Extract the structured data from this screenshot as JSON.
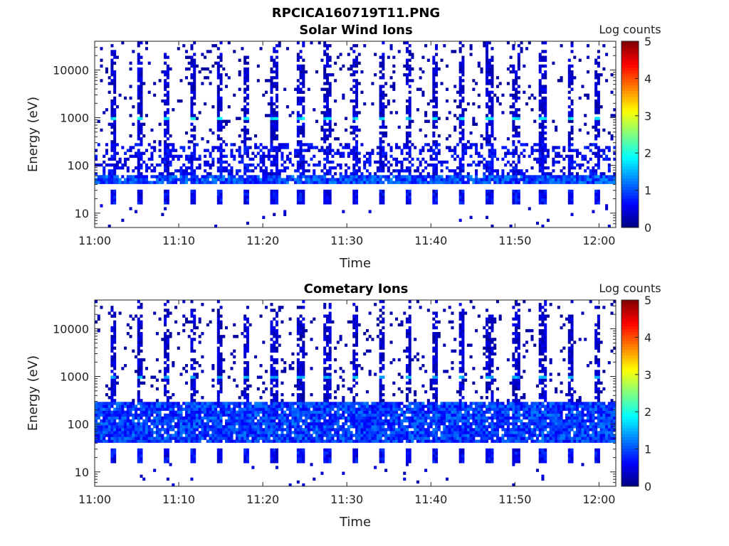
{
  "figure": {
    "title": "RPCICA160719T11.PNG"
  },
  "colors": {
    "background": "#ffffff",
    "empty_cell": "#ffffff",
    "axis": "#222222",
    "colormap": "jet"
  },
  "chart_data": [
    {
      "type": "heatmap",
      "title": "Solar Wind Ions",
      "xlabel": "Time",
      "ylabel": "Energy (eV)",
      "x_ticks": [
        "11:00",
        "11:10",
        "11:20",
        "11:30",
        "11:40",
        "11:50",
        "12:00"
      ],
      "x_range": [
        "11:00",
        "12:02"
      ],
      "y_scale": "log",
      "y_ticks": [
        "10",
        "100",
        "1000",
        "10000"
      ],
      "y_range_eV": [
        5,
        40000
      ],
      "colorbar": {
        "label": "Log counts",
        "range": [
          0,
          5
        ],
        "ticks": [
          "0",
          "1",
          "2",
          "3",
          "4",
          "5"
        ]
      },
      "features": {
        "sweep_period_min": 3.2,
        "dense_band_eV": [
          40,
          60
        ],
        "dense_band_log_counts": 1.3,
        "peak_line_eV": 1000,
        "peak_line_log_counts": 1.8,
        "low_blocks_eV": [
          15,
          30
        ],
        "low_blocks_log_counts": 0.6
      }
    },
    {
      "type": "heatmap",
      "title": "Cometary Ions",
      "xlabel": "Time",
      "ylabel": "Energy (eV)",
      "x_ticks": [
        "11:00",
        "11:10",
        "11:20",
        "11:30",
        "11:40",
        "11:50",
        "12:00"
      ],
      "x_range": [
        "11:00",
        "12:02"
      ],
      "y_scale": "log",
      "y_ticks": [
        "10",
        "100",
        "1000",
        "10000"
      ],
      "y_range_eV": [
        5,
        40000
      ],
      "colorbar": {
        "label": "Log counts",
        "range": [
          0,
          5
        ],
        "ticks": [
          "0",
          "1",
          "2",
          "3",
          "4",
          "5"
        ]
      },
      "features": {
        "sweep_period_min": 3.2,
        "dense_band_eV": [
          40,
          300
        ],
        "dense_band_log_counts": 1.2,
        "peak_line_eV": 1000,
        "peak_line_log_counts": 1.5,
        "low_blocks_eV": [
          15,
          30
        ],
        "low_blocks_log_counts": 0.6
      }
    }
  ]
}
